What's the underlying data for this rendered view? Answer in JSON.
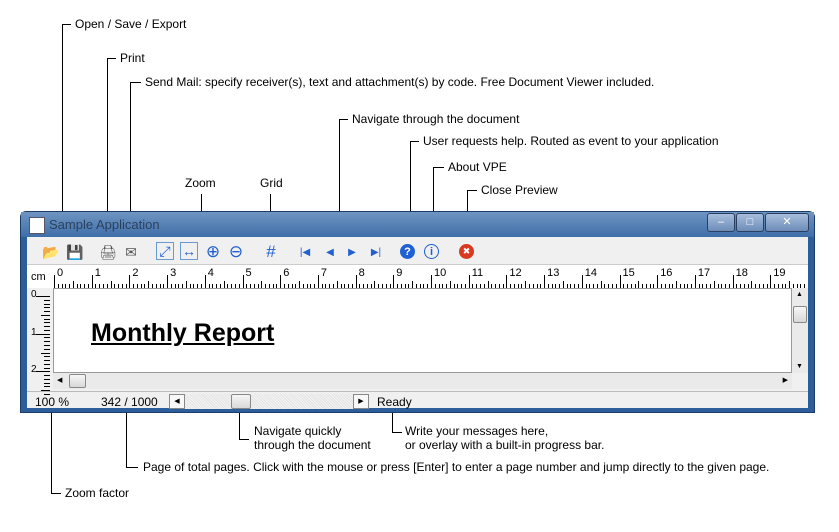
{
  "annotations": {
    "open_save_export": "Open / Save / Export",
    "print": "Print",
    "send_mail": "Send Mail: specify receiver(s), text and attachment(s) by code. Free Document Viewer included.",
    "navigate": "Navigate through the document",
    "help": "User requests help. Routed as event to your application",
    "about": "About VPE",
    "close_preview": "Close Preview",
    "zoom": "Zoom",
    "grid": "Grid",
    "navigate_quickly_1": "Navigate quickly",
    "navigate_quickly_2": "through the document",
    "messages_1": "Write your messages here,",
    "messages_2": "or overlay with a built-in progress bar.",
    "page_of_total": "Page of total pages. Click with the mouse or press [Enter] to enter a page number and jump directly to the given page.",
    "zoom_factor": "Zoom factor"
  },
  "window": {
    "title": "Sample Application",
    "minimize": "‒",
    "maximize": "□",
    "close": "✕"
  },
  "toolbar": {
    "icons": {
      "open": "📂",
      "save": "💾",
      "print": "🖨",
      "mail": "✉",
      "zoom_fit": "⤢",
      "zoom_width": "↔",
      "zoom_in": "⊕",
      "zoom_out": "⊖",
      "grid": "#",
      "first": "|◀",
      "prev": "◀",
      "next": "▶",
      "last": "▶|",
      "help": "?",
      "about": "i",
      "close": "✖"
    }
  },
  "ruler": {
    "unit": "cm",
    "labels": [
      "0",
      "1",
      "2",
      "3",
      "4",
      "5",
      "6",
      "7",
      "8",
      "9",
      "10",
      "11",
      "12",
      "13",
      "14",
      "15",
      "16",
      "17",
      "18",
      "19"
    ],
    "vlabels": [
      "0",
      "1",
      "2"
    ]
  },
  "document": {
    "heading": "Monthly Report"
  },
  "status": {
    "zoom": "100 %",
    "page": "342 / 1000",
    "message": "Ready"
  },
  "colors": {
    "nav_blue": "#2060d0",
    "close_red": "#d83a20",
    "title_bar": "#3f6ea8"
  }
}
